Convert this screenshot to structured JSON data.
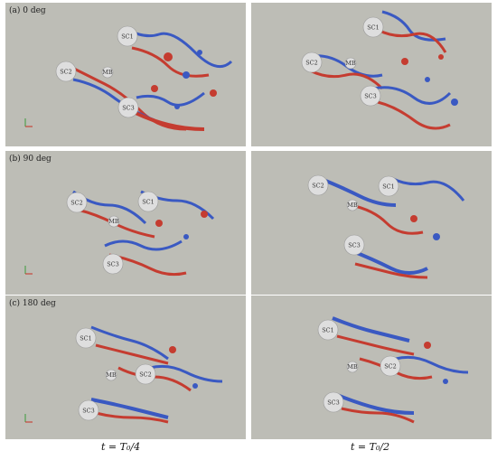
{
  "panels": [
    {
      "id": "a-left",
      "label": "(a) 0 deg",
      "cylinders": [
        "SC1",
        "SC2",
        "MB",
        "SC3"
      ]
    },
    {
      "id": "a-right",
      "label": "",
      "cylinders": [
        "SC1",
        "SC2",
        "MB",
        "SC3"
      ]
    },
    {
      "id": "b-left",
      "label": "(b) 90 deg",
      "cylinders": [
        "SC1",
        "SC2",
        "MB",
        "SC3"
      ]
    },
    {
      "id": "b-right",
      "label": "",
      "cylinders": [
        "SC1",
        "SC2",
        "MB",
        "SC3"
      ]
    },
    {
      "id": "c-left",
      "label": "(c) 180 deg",
      "cylinders": [
        "SC1",
        "SC2",
        "MB",
        "SC3"
      ]
    },
    {
      "id": "c-right",
      "label": "",
      "cylinders": [
        "SC1",
        "SC2",
        "MB",
        "SC3"
      ]
    }
  ],
  "captions": {
    "left": "t = T₀/4",
    "right": "t = T₀/2"
  },
  "colors": {
    "background": "#bdbdb6",
    "positive": "#c62f22",
    "negative": "#2c4fc4",
    "cylinder": "#dedede"
  }
}
